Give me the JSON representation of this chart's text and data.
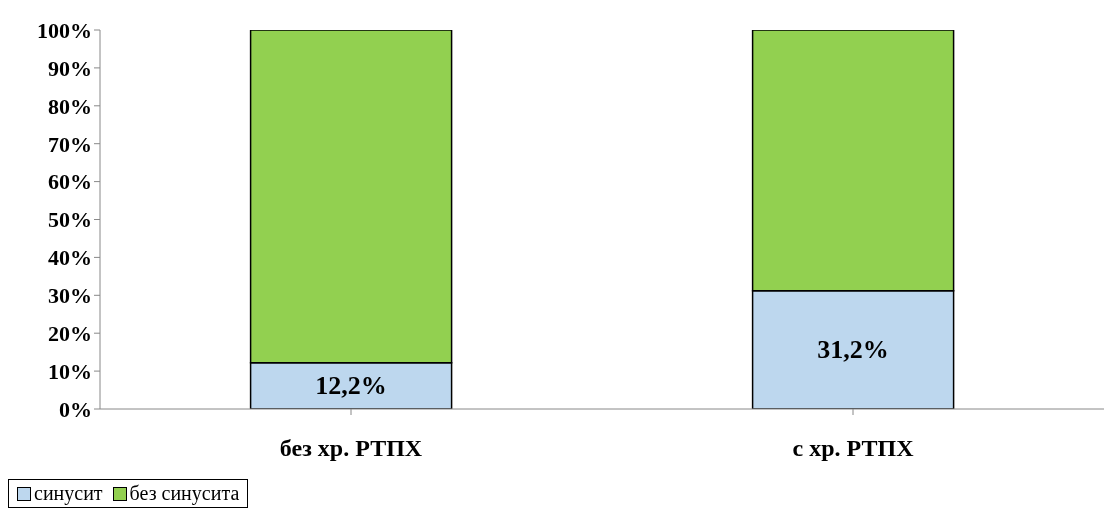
{
  "chart_data": {
    "type": "bar",
    "stacked": true,
    "categories": [
      "без хр. РТПХ",
      "с хр. РТПХ"
    ],
    "series": [
      {
        "name": "синусит",
        "color": "#bdd7ee",
        "values": [
          12.2,
          31.2
        ],
        "value_labels": [
          "12,2%",
          "31,2%"
        ]
      },
      {
        "name": "без синусита",
        "color": "#92d050",
        "values": [
          87.8,
          68.8
        ]
      }
    ],
    "ylim": [
      0,
      100
    ],
    "yticks": [
      {
        "value": 0,
        "label": "0%"
      },
      {
        "value": 10,
        "label": "10%"
      },
      {
        "value": 20,
        "label": "20%"
      },
      {
        "value": 30,
        "label": "30%"
      },
      {
        "value": 40,
        "label": "40%"
      },
      {
        "value": 50,
        "label": "50%"
      },
      {
        "value": 60,
        "label": "60%"
      },
      {
        "value": 70,
        "label": "70%"
      },
      {
        "value": 80,
        "label": "80%"
      },
      {
        "value": 90,
        "label": "90%"
      },
      {
        "value": 100,
        "label": "100%"
      }
    ],
    "grid": false,
    "legend": "bottom"
  }
}
